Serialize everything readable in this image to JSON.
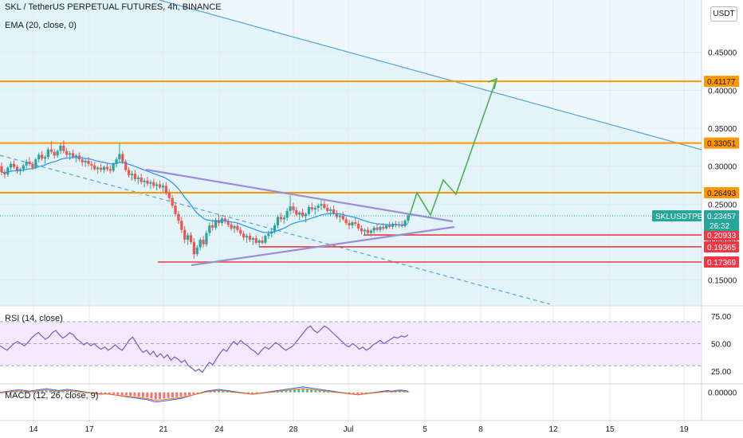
{
  "header": {
    "title": "SKL / TetherUS PERPETUAL FUTURES, 4h, BINANCE",
    "indicator": "EMA (20, close, 0)",
    "currency": "USDT"
  },
  "panes": {
    "rsi_label": "RSI (14, close)",
    "macd_label": "MACD (12, 26, close, 9)"
  },
  "colors": {
    "up": "#26a69a",
    "down": "#ef5350",
    "ema": "#2196f3",
    "trend_blue": "#4fa3e0",
    "triangle": "#9c8ed6",
    "resistance": "#ff9800",
    "support": "#f23645",
    "projection": "#4caf50",
    "rsi": "#7e57c2"
  },
  "chart_data": [
    {
      "type": "candlestick",
      "title": "SKL / TetherUS PERPETUAL FUTURES, 4h, BINANCE",
      "x_tick_labels": [
        "14",
        "17",
        "21",
        "24",
        "28",
        "Jul",
        "5",
        "8",
        "12",
        "15",
        "19"
      ],
      "y_tick_labels": [
        "0.45000",
        "0.40000",
        "0.35000",
        "0.30000",
        "0.25000",
        "0.20000",
        "0.15000"
      ],
      "y_ticks": [
        0.45,
        0.4,
        0.35,
        0.3,
        0.25,
        0.2,
        0.15
      ],
      "ylim": [
        0.117,
        0.519
      ],
      "last_price": {
        "symbol": "SKLUSDTPERP",
        "value": "0.23457",
        "countdown": "26:32"
      },
      "horizontal_levels": [
        {
          "value": 0.41177,
          "label": "0.41177",
          "kind": "resistance"
        },
        {
          "value": 0.33051,
          "label": "0.33051",
          "kind": "resistance"
        },
        {
          "value": 0.26493,
          "label": "0.26493",
          "kind": "resistance"
        },
        {
          "value": 0.20933,
          "label": "0.20933",
          "kind": "support"
        },
        {
          "value": 0.19365,
          "label": "0.19365",
          "kind": "support"
        },
        {
          "value": 0.17369,
          "label": "0.17369",
          "kind": "support"
        }
      ],
      "candles_ohlc": [
        [
          0.3,
          0.305,
          0.288,
          0.292
        ],
        [
          0.292,
          0.296,
          0.284,
          0.289
        ],
        [
          0.289,
          0.3,
          0.286,
          0.298
        ],
        [
          0.298,
          0.306,
          0.294,
          0.303
        ],
        [
          0.303,
          0.308,
          0.296,
          0.299
        ],
        [
          0.299,
          0.302,
          0.29,
          0.294
        ],
        [
          0.294,
          0.298,
          0.288,
          0.296
        ],
        [
          0.296,
          0.303,
          0.292,
          0.301
        ],
        [
          0.301,
          0.309,
          0.297,
          0.306
        ],
        [
          0.306,
          0.312,
          0.3,
          0.303
        ],
        [
          0.303,
          0.306,
          0.295,
          0.298
        ],
        [
          0.298,
          0.311,
          0.296,
          0.309
        ],
        [
          0.309,
          0.318,
          0.305,
          0.315
        ],
        [
          0.315,
          0.32,
          0.307,
          0.31
        ],
        [
          0.31,
          0.314,
          0.303,
          0.312
        ],
        [
          0.312,
          0.325,
          0.309,
          0.322
        ],
        [
          0.322,
          0.333,
          0.316,
          0.319
        ],
        [
          0.319,
          0.323,
          0.31,
          0.314
        ],
        [
          0.314,
          0.322,
          0.311,
          0.32
        ],
        [
          0.32,
          0.331,
          0.316,
          0.327
        ],
        [
          0.327,
          0.334,
          0.317,
          0.32
        ],
        [
          0.32,
          0.324,
          0.311,
          0.315
        ],
        [
          0.315,
          0.32,
          0.308,
          0.317
        ],
        [
          0.317,
          0.322,
          0.31,
          0.312
        ],
        [
          0.312,
          0.316,
          0.305,
          0.314
        ],
        [
          0.314,
          0.318,
          0.306,
          0.309
        ],
        [
          0.309,
          0.313,
          0.3,
          0.305
        ],
        [
          0.305,
          0.31,
          0.299,
          0.307
        ],
        [
          0.307,
          0.312,
          0.3,
          0.303
        ],
        [
          0.303,
          0.307,
          0.295,
          0.301
        ],
        [
          0.301,
          0.306,
          0.294,
          0.296
        ],
        [
          0.296,
          0.3,
          0.29,
          0.298
        ],
        [
          0.298,
          0.303,
          0.292,
          0.295
        ],
        [
          0.295,
          0.301,
          0.291,
          0.299
        ],
        [
          0.299,
          0.304,
          0.293,
          0.296
        ],
        [
          0.296,
          0.301,
          0.29,
          0.294
        ],
        [
          0.294,
          0.305,
          0.292,
          0.303
        ],
        [
          0.303,
          0.312,
          0.298,
          0.309
        ],
        [
          0.309,
          0.33,
          0.305,
          0.316
        ],
        [
          0.316,
          0.32,
          0.303,
          0.306
        ],
        [
          0.306,
          0.309,
          0.292,
          0.295
        ],
        [
          0.295,
          0.299,
          0.285,
          0.288
        ],
        [
          0.288,
          0.294,
          0.281,
          0.29
        ],
        [
          0.29,
          0.295,
          0.28,
          0.283
        ],
        [
          0.283,
          0.288,
          0.276,
          0.285
        ],
        [
          0.285,
          0.29,
          0.276,
          0.279
        ],
        [
          0.279,
          0.284,
          0.272,
          0.281
        ],
        [
          0.281,
          0.286,
          0.274,
          0.277
        ],
        [
          0.277,
          0.282,
          0.27,
          0.279
        ],
        [
          0.279,
          0.283,
          0.271,
          0.274
        ],
        [
          0.274,
          0.279,
          0.268,
          0.276
        ],
        [
          0.276,
          0.281,
          0.27,
          0.272
        ],
        [
          0.272,
          0.278,
          0.266,
          0.274
        ],
        [
          0.274,
          0.279,
          0.262,
          0.265
        ],
        [
          0.265,
          0.27,
          0.255,
          0.258
        ],
        [
          0.258,
          0.262,
          0.245,
          0.248
        ],
        [
          0.248,
          0.252,
          0.234,
          0.237
        ],
        [
          0.237,
          0.241,
          0.224,
          0.228
        ],
        [
          0.228,
          0.233,
          0.212,
          0.216
        ],
        [
          0.216,
          0.221,
          0.198,
          0.203
        ],
        [
          0.203,
          0.212,
          0.196,
          0.209
        ],
        [
          0.209,
          0.213,
          0.197,
          0.2
        ],
        [
          0.2,
          0.205,
          0.178,
          0.184
        ],
        [
          0.184,
          0.196,
          0.181,
          0.193
        ],
        [
          0.193,
          0.206,
          0.189,
          0.203
        ],
        [
          0.203,
          0.208,
          0.193,
          0.197
        ],
        [
          0.197,
          0.215,
          0.194,
          0.212
        ],
        [
          0.212,
          0.226,
          0.208,
          0.222
        ],
        [
          0.222,
          0.23,
          0.215,
          0.219
        ],
        [
          0.219,
          0.232,
          0.216,
          0.229
        ],
        [
          0.229,
          0.236,
          0.221,
          0.225
        ],
        [
          0.225,
          0.234,
          0.221,
          0.231
        ],
        [
          0.231,
          0.235,
          0.224,
          0.227
        ],
        [
          0.227,
          0.231,
          0.22,
          0.223
        ],
        [
          0.223,
          0.227,
          0.215,
          0.218
        ],
        [
          0.218,
          0.223,
          0.212,
          0.221
        ],
        [
          0.221,
          0.225,
          0.213,
          0.216
        ],
        [
          0.216,
          0.22,
          0.208,
          0.211
        ],
        [
          0.211,
          0.215,
          0.202,
          0.206
        ],
        [
          0.206,
          0.211,
          0.199,
          0.208
        ],
        [
          0.208,
          0.212,
          0.2,
          0.203
        ],
        [
          0.203,
          0.207,
          0.196,
          0.205
        ],
        [
          0.205,
          0.209,
          0.197,
          0.199
        ],
        [
          0.199,
          0.204,
          0.194,
          0.202
        ],
        [
          0.202,
          0.207,
          0.197,
          0.199
        ],
        [
          0.199,
          0.21,
          0.197,
          0.208
        ],
        [
          0.208,
          0.215,
          0.204,
          0.211
        ],
        [
          0.211,
          0.218,
          0.206,
          0.214
        ],
        [
          0.214,
          0.225,
          0.211,
          0.222
        ],
        [
          0.222,
          0.236,
          0.218,
          0.233
        ],
        [
          0.233,
          0.239,
          0.226,
          0.23
        ],
        [
          0.23,
          0.235,
          0.224,
          0.232
        ],
        [
          0.232,
          0.245,
          0.228,
          0.241
        ],
        [
          0.241,
          0.262,
          0.236,
          0.247
        ],
        [
          0.247,
          0.252,
          0.238,
          0.242
        ],
        [
          0.242,
          0.246,
          0.234,
          0.236
        ],
        [
          0.236,
          0.241,
          0.229,
          0.239
        ],
        [
          0.239,
          0.244,
          0.232,
          0.234
        ],
        [
          0.234,
          0.239,
          0.226,
          0.237
        ],
        [
          0.237,
          0.249,
          0.234,
          0.246
        ],
        [
          0.246,
          0.252,
          0.24,
          0.243
        ],
        [
          0.243,
          0.248,
          0.236,
          0.245
        ],
        [
          0.245,
          0.251,
          0.24,
          0.248
        ],
        [
          0.248,
          0.255,
          0.242,
          0.25
        ],
        [
          0.25,
          0.255,
          0.243,
          0.245
        ],
        [
          0.245,
          0.25,
          0.238,
          0.241
        ],
        [
          0.241,
          0.246,
          0.234,
          0.243
        ],
        [
          0.243,
          0.248,
          0.236,
          0.238
        ],
        [
          0.238,
          0.242,
          0.23,
          0.233
        ],
        [
          0.233,
          0.238,
          0.226,
          0.235
        ],
        [
          0.235,
          0.24,
          0.228,
          0.23
        ],
        [
          0.23,
          0.234,
          0.222,
          0.225
        ],
        [
          0.225,
          0.229,
          0.217,
          0.222
        ],
        [
          0.222,
          0.228,
          0.218,
          0.226
        ],
        [
          0.226,
          0.232,
          0.221,
          0.224
        ],
        [
          0.224,
          0.228,
          0.215,
          0.218
        ],
        [
          0.218,
          0.222,
          0.21,
          0.214
        ],
        [
          0.214,
          0.218,
          0.208,
          0.216
        ],
        [
          0.216,
          0.22,
          0.209,
          0.212
        ],
        [
          0.212,
          0.217,
          0.207,
          0.215
        ],
        [
          0.215,
          0.221,
          0.211,
          0.219
        ],
        [
          0.219,
          0.224,
          0.214,
          0.216
        ],
        [
          0.216,
          0.222,
          0.213,
          0.22
        ],
        [
          0.22,
          0.225,
          0.215,
          0.218
        ],
        [
          0.218,
          0.224,
          0.216,
          0.222
        ],
        [
          0.222,
          0.227,
          0.218,
          0.22
        ],
        [
          0.22,
          0.226,
          0.217,
          0.224
        ],
        [
          0.224,
          0.228,
          0.219,
          0.222
        ],
        [
          0.222,
          0.227,
          0.219,
          0.223
        ],
        [
          0.223,
          0.228,
          0.219,
          0.221
        ],
        [
          0.221,
          0.23,
          0.219,
          0.228
        ],
        [
          0.228,
          0.238,
          0.225,
          0.235
        ]
      ]
    },
    {
      "type": "line",
      "title": "RSI (14, close)",
      "y_tick_labels": [
        "75.00",
        "50.00",
        "25.00"
      ],
      "y_ticks": [
        75,
        50,
        25
      ],
      "band": [
        30,
        70
      ],
      "ylim": [
        15,
        80
      ],
      "values": [
        48,
        46,
        44,
        47,
        50,
        52,
        50,
        48,
        51,
        55,
        58,
        60,
        57,
        54,
        56,
        60,
        62,
        58,
        55,
        57,
        60,
        58,
        54,
        52,
        49,
        51,
        48,
        50,
        47,
        45,
        47,
        44,
        46,
        49,
        46,
        44,
        48,
        53,
        56,
        51,
        46,
        42,
        44,
        40,
        43,
        38,
        41,
        37,
        40,
        35,
        38,
        36,
        33,
        35,
        30,
        28,
        25,
        27,
        24,
        29,
        33,
        31,
        36,
        41,
        45,
        43,
        48,
        52,
        49,
        53,
        50,
        48,
        45,
        43,
        40,
        44,
        47,
        45,
        48,
        51,
        49,
        46,
        44,
        46,
        48,
        52,
        56,
        60,
        64,
        66,
        62,
        60,
        63,
        66,
        64,
        61,
        58,
        55,
        52,
        49,
        47,
        50,
        48,
        45,
        47,
        44,
        46,
        49,
        51,
        53,
        50,
        52,
        54,
        56,
        55,
        57,
        56,
        58
      ]
    },
    {
      "type": "bar",
      "title": "MACD (12, 26, close, 9)",
      "y_tick_labels": [
        "0.00000"
      ],
      "ylim": [
        -0.025,
        0.008
      ],
      "values": [
        0.0,
        0.0005,
        0.001,
        0.0015,
        0.002,
        0.002,
        0.0015,
        0.001,
        0.0015,
        0.002,
        0.0025,
        0.003,
        0.0025,
        0.002,
        0.0015,
        0.002,
        0.0025,
        0.002,
        0.0015,
        0.001,
        0.0005,
        0.0,
        -0.0005,
        -0.001,
        -0.0015,
        -0.001,
        -0.0015,
        -0.002,
        -0.0025,
        -0.003,
        -0.0035,
        -0.004,
        -0.0045,
        -0.005,
        -0.0055,
        -0.006,
        -0.007,
        -0.008,
        -0.0075,
        -0.007,
        -0.0065,
        -0.006,
        -0.0055,
        -0.005,
        -0.004,
        -0.003,
        -0.002,
        -0.001,
        0.0,
        0.001,
        0.0015,
        0.002,
        0.0025,
        0.002,
        0.0015,
        0.001,
        0.0005,
        0.0,
        -0.0005,
        -0.001,
        -0.0015,
        -0.001,
        -0.0005,
        0.0,
        0.0005,
        0.001,
        0.0015,
        0.002,
        0.0025,
        0.003,
        0.0035,
        0.004,
        0.0045,
        0.004,
        0.0035,
        0.003,
        0.0025,
        0.002,
        0.0015,
        0.001,
        0.0005,
        0.0,
        -0.0005,
        -0.001,
        -0.0015,
        -0.002,
        -0.0015,
        -0.001,
        -0.0005,
        0.0,
        0.0005,
        0.001,
        0.0015,
        0.001,
        0.0015,
        0.002,
        0.0015,
        0.001
      ]
    }
  ]
}
